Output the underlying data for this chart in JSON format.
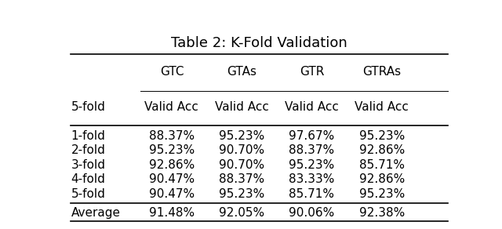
{
  "title": "Table 2: K-Fold Validation",
  "col_groups": [
    "GTC",
    "GTAs",
    "GTR",
    "GTRAs"
  ],
  "col_subheader": "Valid Acc",
  "row_header": "5-fold",
  "rows": [
    [
      "1-fold",
      "88.37%",
      "95.23%",
      "97.67%",
      "95.23%"
    ],
    [
      "2-fold",
      "95.23%",
      "90.70%",
      "88.37%",
      "92.86%"
    ],
    [
      "3-fold",
      "92.86%",
      "90.70%",
      "95.23%",
      "85.71%"
    ],
    [
      "4-fold",
      "90.47%",
      "88.37%",
      "83.33%",
      "92.86%"
    ],
    [
      "5-fold",
      "90.47%",
      "95.23%",
      "85.71%",
      "95.23%"
    ]
  ],
  "average_row": [
    "Average",
    "91.48%",
    "92.05%",
    "90.06%",
    "92.38%"
  ],
  "bg_color": "#ffffff",
  "text_color": "#000000",
  "line_color": "#000000",
  "title_fontsize": 13,
  "header_fontsize": 11,
  "cell_fontsize": 11
}
